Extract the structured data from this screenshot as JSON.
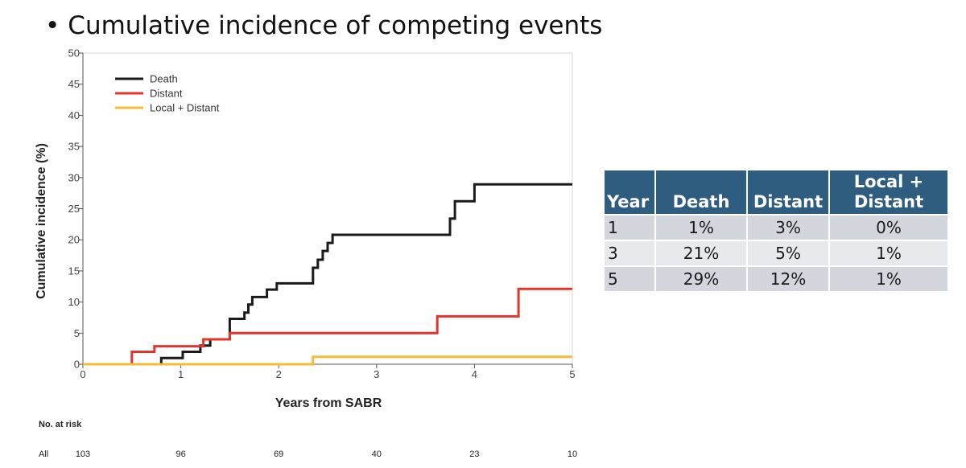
{
  "slide": {
    "title": "Cumulative incidence of competing events"
  },
  "chart_data": {
    "type": "line",
    "step": true,
    "xlabel": "Years from SABR",
    "ylabel": "Cumulative incidence (%)",
    "xlim": [
      0,
      5
    ],
    "ylim": [
      0,
      50
    ],
    "xticks": [
      0,
      1,
      2,
      3,
      4,
      5
    ],
    "yticks": [
      0,
      5,
      10,
      15,
      20,
      25,
      30,
      35,
      40,
      45,
      50
    ],
    "grid": false,
    "legend_position": "top-left",
    "series": [
      {
        "name": "Death",
        "color": "#1a1a1a",
        "x": [
          0,
          0.8,
          0.8,
          1.02,
          1.02,
          1.2,
          1.2,
          1.3,
          1.3,
          1.5,
          1.5,
          1.65,
          1.65,
          1.69,
          1.69,
          1.73,
          1.73,
          1.88,
          1.88,
          1.98,
          1.98,
          2.35,
          2.35,
          2.4,
          2.4,
          2.45,
          2.45,
          2.5,
          2.5,
          2.55,
          2.55,
          3.75,
          3.75,
          3.8,
          3.8,
          4.0,
          4.0,
          5.0
        ],
        "y": [
          0,
          0,
          1,
          1,
          2,
          2,
          3,
          3,
          4,
          4,
          7.3,
          7.3,
          8.3,
          8.3,
          9.6,
          9.6,
          10.8,
          10.8,
          12,
          12,
          13,
          13,
          15.5,
          15.5,
          16.8,
          16.8,
          18.2,
          18.2,
          19.5,
          19.5,
          20.8,
          20.8,
          23.4,
          23.4,
          26.2,
          26.2,
          28.9,
          28.9
        ]
      },
      {
        "name": "Distant",
        "color": "#e0362b",
        "x": [
          0,
          0.5,
          0.5,
          0.73,
          0.73,
          1.23,
          1.23,
          1.5,
          1.5,
          3.62,
          3.62,
          4.45,
          4.45,
          5.0
        ],
        "y": [
          0,
          0,
          2,
          2,
          2.9,
          2.9,
          4,
          4,
          5,
          5,
          7.7,
          7.7,
          12.1,
          12.1
        ]
      },
      {
        "name": "Local + Distant",
        "color": "#f4bb3a",
        "x": [
          0,
          2.35,
          2.35,
          5.0
        ],
        "y": [
          0,
          0,
          1.2,
          1.2
        ]
      }
    ],
    "risk_table": {
      "title": "No. at risk",
      "row_label": "All",
      "times": [
        0,
        1,
        2,
        3,
        4,
        5
      ],
      "values": [
        "103",
        "96",
        "69",
        "40",
        "23",
        "10"
      ]
    }
  },
  "table": {
    "headers": [
      "Year",
      "Death",
      "Distant",
      "Local + Distant"
    ],
    "rows": [
      [
        "1",
        "1%",
        "3%",
        "0%"
      ],
      [
        "3",
        "21%",
        "5%",
        "1%"
      ],
      [
        "5",
        "29%",
        "12%",
        "1%"
      ]
    ]
  }
}
